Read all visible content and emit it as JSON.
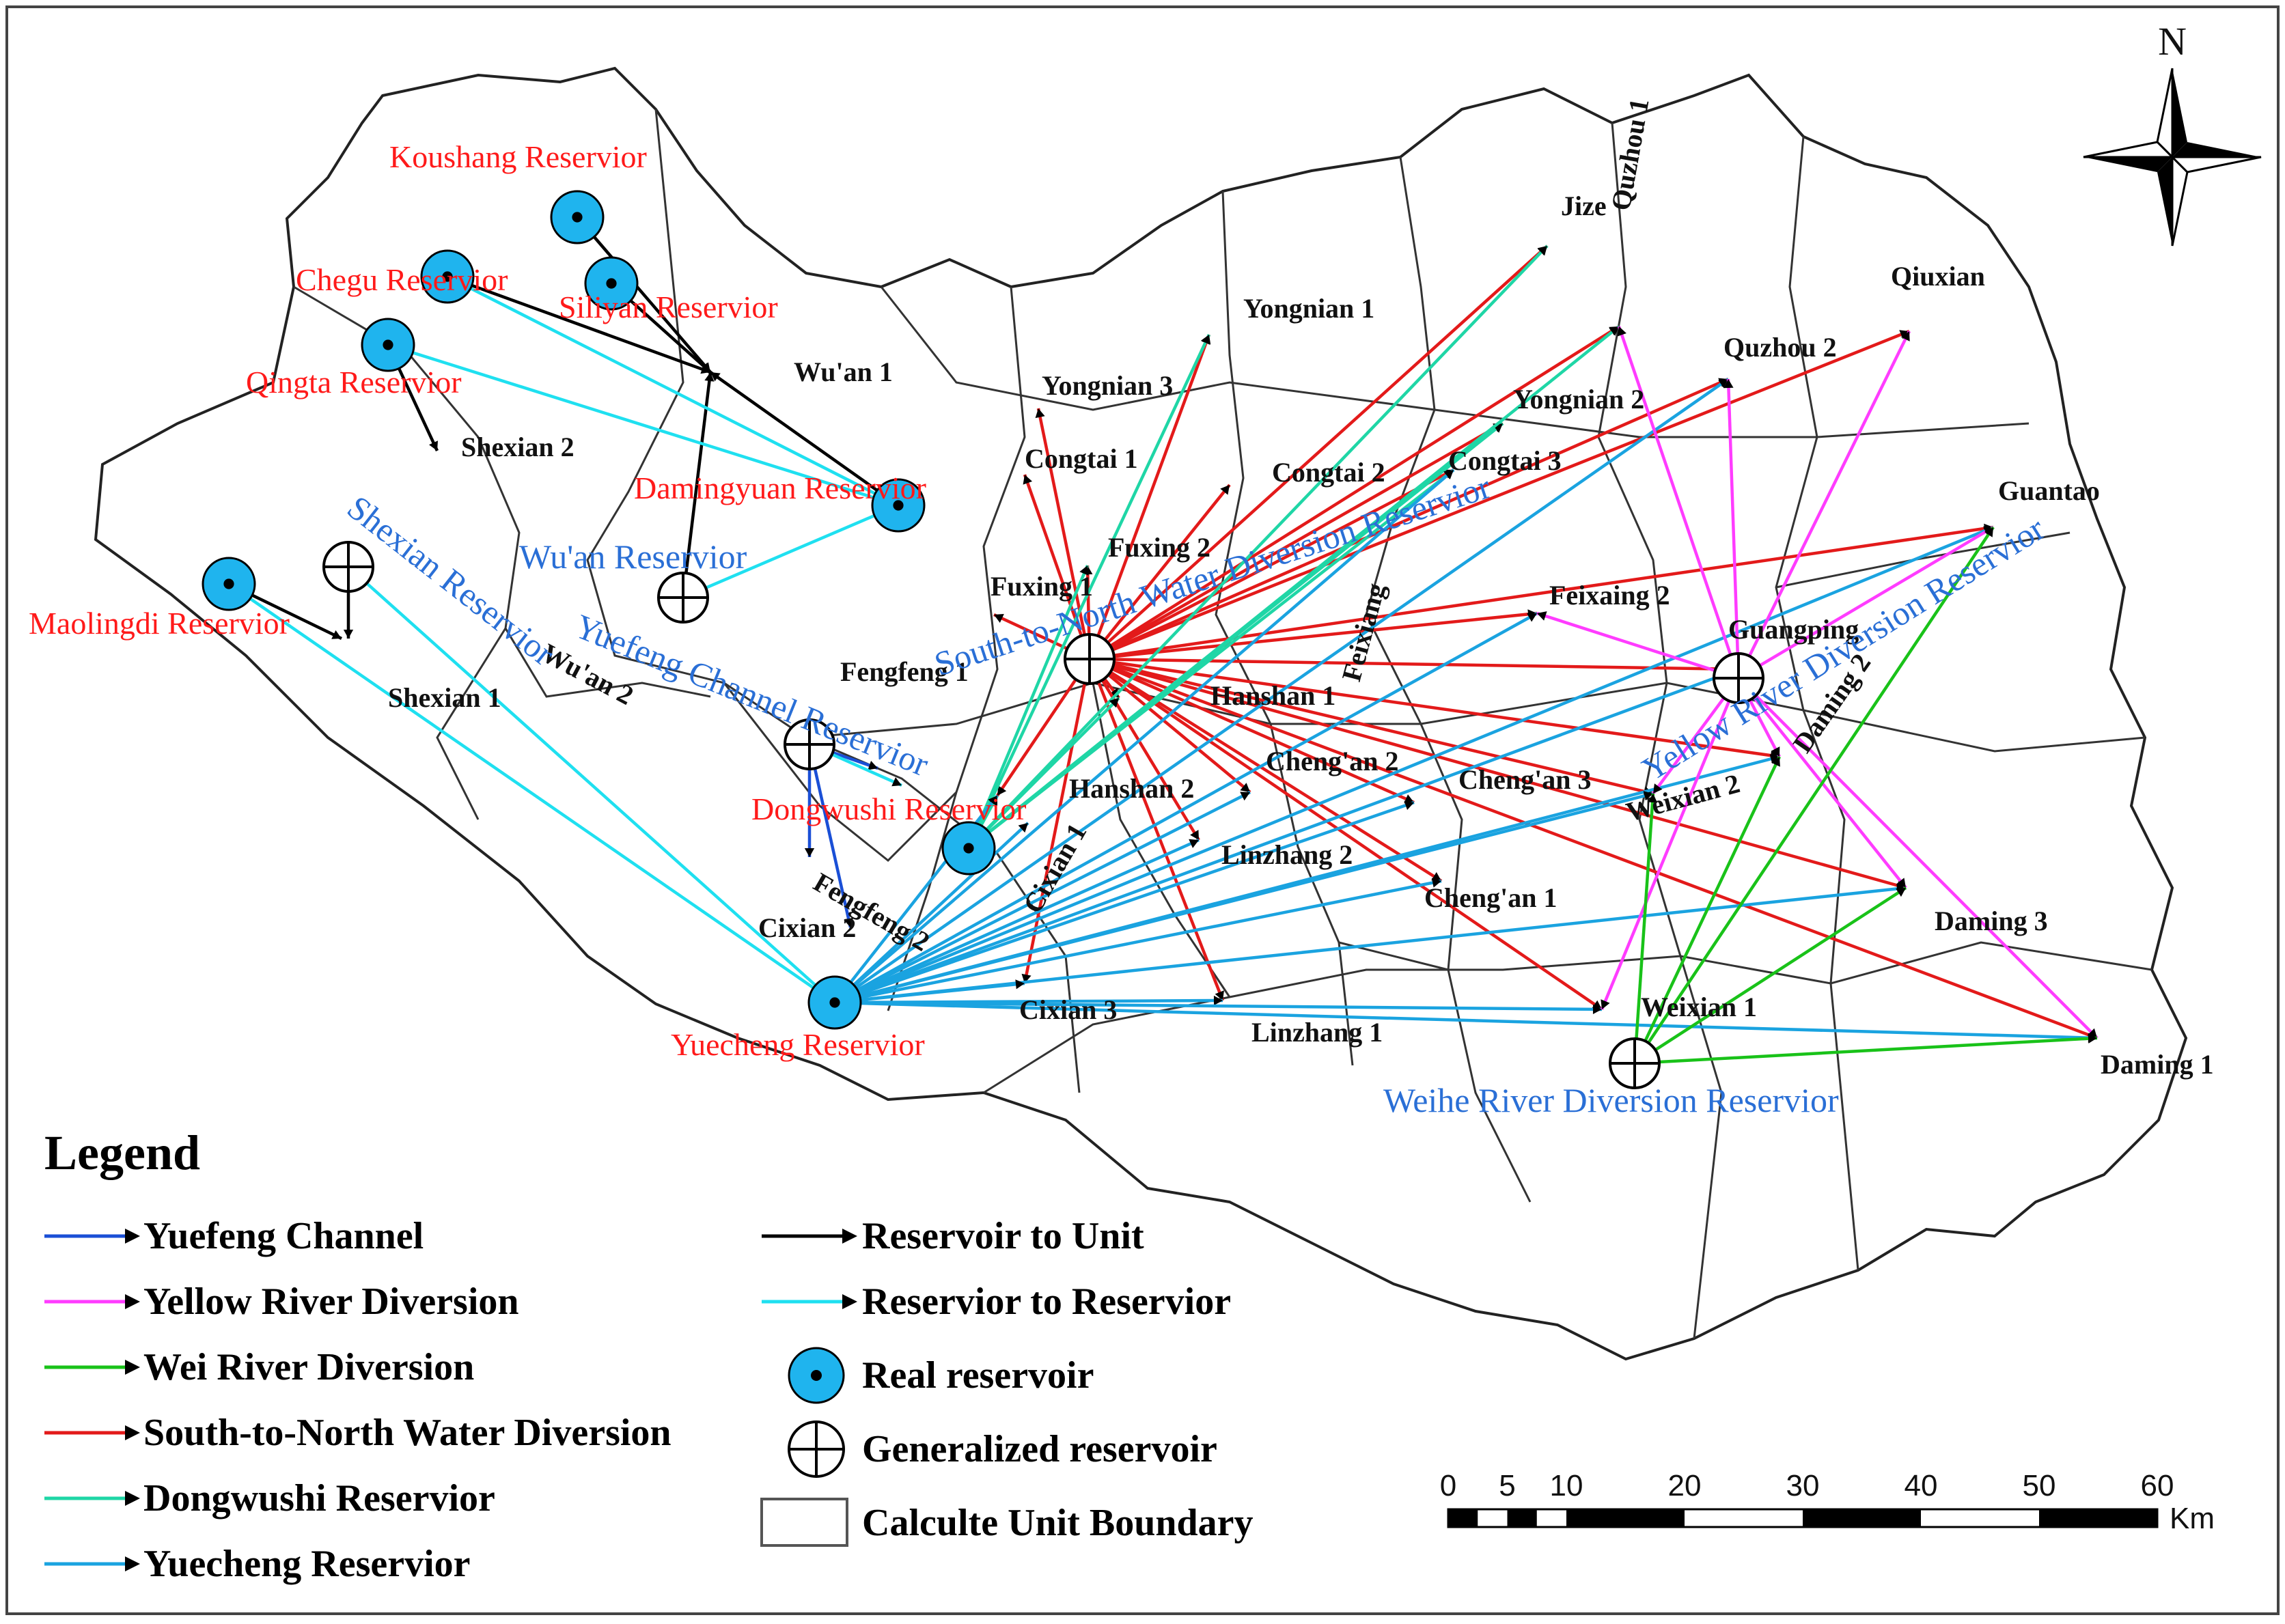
{
  "colors": {
    "yuefeng": "#1a4fd6",
    "yellow": "#ff3cff",
    "wei": "#19c219",
    "south_north": "#e31a1a",
    "dongwushi": "#1fd6a6",
    "yuecheng": "#1aa3e0",
    "unit": "#000000",
    "res_to_res": "#1fe0f0",
    "reservoir_fill": "#1fb4ee"
  },
  "north": "N",
  "legend": {
    "title": "Legend",
    "items": [
      {
        "label": "Yuefeng Channel",
        "color": "#1a4fd6",
        "icon": "arrow-line"
      },
      {
        "label": "Yellow River Diversion",
        "color": "#ff3cff",
        "icon": "arrow-line"
      },
      {
        "label": "Wei River Diversion",
        "color": "#19c219",
        "icon": "arrow-line"
      },
      {
        "label": "South-to-North Water Diversion",
        "color": "#e31a1a",
        "icon": "arrow-line"
      },
      {
        "label": "Dongwushi Reservior",
        "color": "#1fd6a6",
        "icon": "arrow-line"
      },
      {
        "label": "Yuecheng Reservior",
        "color": "#1aa3e0",
        "icon": "arrow-line"
      },
      {
        "label": "Reservoir to Unit",
        "color": "#000000",
        "icon": "arrow-line"
      },
      {
        "label": "Reservior to Reservior",
        "color": "#1fe0f0",
        "icon": "arrow-line"
      },
      {
        "label": "Real reservoir",
        "icon": "real-reservoir-icon"
      },
      {
        "label": "Generalized reservoir",
        "icon": "generalized-reservoir-icon"
      },
      {
        "label": "Calculte Unit Boundary",
        "icon": "boundary-box-icon"
      }
    ]
  },
  "scale_bar": {
    "ticks": [
      "0",
      "5",
      "10",
      "20",
      "30",
      "40",
      "50",
      "60"
    ],
    "unit": "Km"
  },
  "real_reservoirs": [
    {
      "name": "Koushang Reservior"
    },
    {
      "name": "Chegu Reservior"
    },
    {
      "name": "Siliyan Reservior"
    },
    {
      "name": "Qingta Reservior"
    },
    {
      "name": "Damingyuan  Reservior"
    },
    {
      "name": "Maolingdi Reservior"
    },
    {
      "name": "Dongwushi  Reservior"
    },
    {
      "name": "Yuecheng Reservior"
    }
  ],
  "generalized_reservoirs": [
    {
      "name": "Shexian Reservior"
    },
    {
      "name": "Wu'an  Reservior"
    },
    {
      "name": "Yuefeng Channel Reservior"
    },
    {
      "name": "South-to-North Water Diversion Reservior"
    },
    {
      "name": "Yellow River Diversion Reservior"
    },
    {
      "name": "Weihe River Diversion Reservior"
    }
  ],
  "units": [
    {
      "name": "Jize"
    },
    {
      "name": "Quzhou 1"
    },
    {
      "name": "Qiuxian"
    },
    {
      "name": "Yongnian 1"
    },
    {
      "name": "Quzhou 2"
    },
    {
      "name": "Wu'an 1"
    },
    {
      "name": "Yongnian 3"
    },
    {
      "name": "Yongnian 2"
    },
    {
      "name": "Shexian 2"
    },
    {
      "name": "Congtai 1"
    },
    {
      "name": "Congtai 2"
    },
    {
      "name": "Congtai 3"
    },
    {
      "name": "Guantao"
    },
    {
      "name": "Fuxing 2"
    },
    {
      "name": "Fuxing 1"
    },
    {
      "name": "Feixaing 2"
    },
    {
      "name": "Wu'an 2"
    },
    {
      "name": "Guangping"
    },
    {
      "name": "Fengfeng 1"
    },
    {
      "name": "Hanshan 1"
    },
    {
      "name": "Feixiang"
    },
    {
      "name": "Shexian 1"
    },
    {
      "name": "Daming 2"
    },
    {
      "name": "Cheng'an 2"
    },
    {
      "name": "Cheng'an 3"
    },
    {
      "name": "Hanshan 2"
    },
    {
      "name": "Weixian 2"
    },
    {
      "name": "Cixian 1"
    },
    {
      "name": "Linzhang 2"
    },
    {
      "name": "Fengfeng 2"
    },
    {
      "name": "Cheng'an 1"
    },
    {
      "name": "Daming 3"
    },
    {
      "name": "Cixian 2"
    },
    {
      "name": "Cixian 3"
    },
    {
      "name": "Weixian 1"
    },
    {
      "name": "Linzhang 1"
    },
    {
      "name": "Daming 1"
    }
  ]
}
